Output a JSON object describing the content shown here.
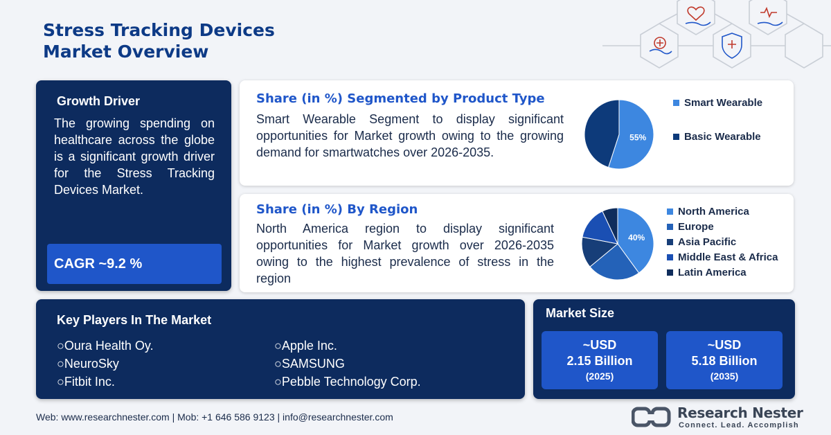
{
  "title": {
    "line1": "Stress Tracking Devices",
    "line2": "Market Overview"
  },
  "growth_driver": {
    "heading": "Growth Driver",
    "text": "The growing spending on healthcare across the globe is a significant growth driver for the Stress Tracking Devices Market.",
    "cagr": "CAGR ~9.2 %"
  },
  "product_type": {
    "heading": "Share (in %) Segmented by Product Type",
    "text": "Smart Wearable Segment to display significant opportunities for Market growth owing to the growing demand for smartwatches over 2026-2035.",
    "legend": [
      {
        "label": "Smart Wearable",
        "color": "#3d87e0"
      },
      {
        "label": "Basic Wearable",
        "color": "#0d3a7a"
      }
    ],
    "pie_label": "55%"
  },
  "region": {
    "heading": "Share (in %) By Region",
    "text": "North America region to display significant opportunities for Market growth over 2026-2035 owing to the highest prevalence of stress in the region",
    "legend": [
      {
        "label": "North America",
        "color": "#3d87e0"
      },
      {
        "label": "Europe",
        "color": "#2462b8"
      },
      {
        "label": "Asia Pacific",
        "color": "#173e78"
      },
      {
        "label": "Middle East & Africa",
        "color": "#1a4fb3"
      },
      {
        "label": "Latin America",
        "color": "#0f2d5c"
      }
    ],
    "pie_label": "40%"
  },
  "chart_data": [
    {
      "type": "pie",
      "title": "Share (in %) Segmented by Product Type",
      "categories": [
        "Smart Wearable",
        "Basic Wearable"
      ],
      "values": [
        55,
        45
      ],
      "labels": [
        "55%",
        ""
      ]
    },
    {
      "type": "pie",
      "title": "Share (in %) By Region",
      "categories": [
        "North America",
        "Europe",
        "Asia Pacific",
        "Middle East & Africa",
        "Latin America"
      ],
      "values": [
        40,
        24,
        14,
        15,
        7
      ],
      "labels": [
        "40%",
        "",
        "",
        "",
        ""
      ]
    }
  ],
  "players": {
    "heading": "Key Players In The Market",
    "col1": [
      "○Oura Health Oy.",
      "○NeuroSky",
      "○Fitbit Inc."
    ],
    "col2": [
      "○Apple Inc.",
      "○SAMSUNG",
      "○Pebble Technology Corp."
    ]
  },
  "market_size": {
    "heading": "Market Size",
    "box1": {
      "prefix": "~USD",
      "value": "2.15 Billion",
      "year": "(2025)"
    },
    "box2": {
      "prefix": "~USD",
      "value": "5.18 Billion",
      "year": "(2035)"
    }
  },
  "footer": {
    "text": "Web: www.researchnester.com  | Mob: +1 646 586 9123 | info@researchnester.com"
  },
  "brand": {
    "name": "Research Nester",
    "tagline": "Connect. Lead. Accomplish"
  },
  "colors": {
    "dark_card": "#0d2b5e",
    "accent_blue": "#1f56c9",
    "heading_blue": "#0d3a86"
  },
  "icons": [
    "heart-hand-icon",
    "heartbeat-hand-icon",
    "medical-shield-icon",
    "medical-cross-hand-icon"
  ]
}
